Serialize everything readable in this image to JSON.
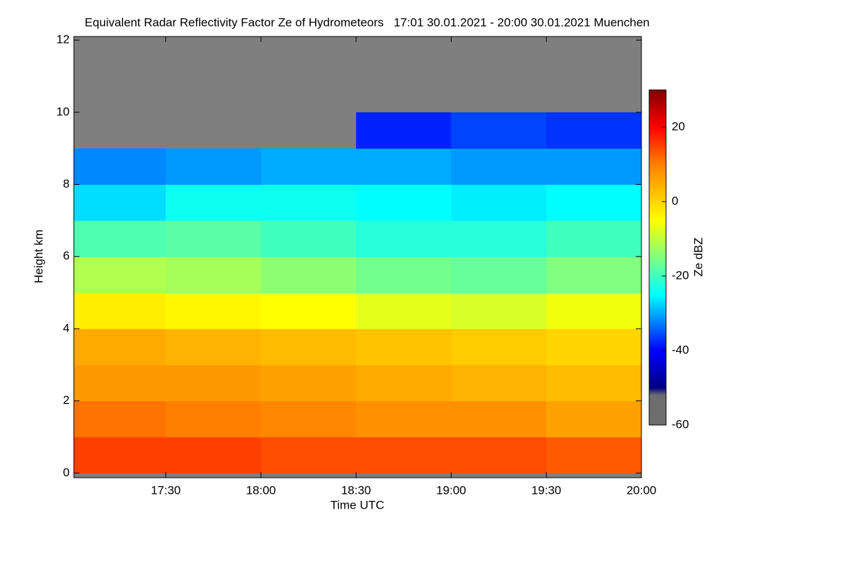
{
  "chart_data": {
    "type": "heatmap",
    "title": "Equivalent Radar Reflectivity Factor Ze of Hydrometeors   17:01 30.01.2021 - 20:00 30.01.2021 Muenchen",
    "x_label": "Time UTC",
    "y_label": "Height km",
    "colorbar_label": "Ze dBZ",
    "x_bins": [
      17.0167,
      17.5,
      18,
      18.5,
      19,
      19.5,
      20
    ],
    "y_bins": [
      0,
      1,
      2,
      3,
      4,
      5,
      6,
      7,
      8,
      9,
      10,
      11,
      12
    ],
    "z": [
      [
        15,
        15,
        14,
        14,
        14,
        13
      ],
      [
        11,
        10,
        9,
        8,
        8,
        6
      ],
      [
        7,
        7,
        6,
        5,
        4,
        3
      ],
      [
        5,
        4,
        3,
        2,
        1,
        0
      ],
      [
        -3,
        -4,
        -5,
        -7,
        -8,
        -6
      ],
      [
        -11,
        -12,
        -14,
        -16,
        -17,
        -15
      ],
      [
        -19,
        -18,
        -20,
        -22,
        -22,
        -20
      ],
      [
        -27,
        -24,
        -24,
        -25,
        -26,
        -25
      ],
      [
        -32,
        -31,
        -30,
        -30,
        -31,
        -31
      ],
      [
        null,
        null,
        null,
        -38,
        -36,
        -37
      ],
      [
        null,
        null,
        null,
        null,
        null,
        null
      ],
      [
        null,
        null,
        null,
        null,
        null,
        null
      ]
    ],
    "xlim": [
      17.0167,
      20.0
    ],
    "ylim": [
      -0.13,
      12.1
    ],
    "xticks": [
      {
        "value": 17.5,
        "label": "17:30"
      },
      {
        "value": 18,
        "label": "18:00"
      },
      {
        "value": 18.5,
        "label": "18:30"
      },
      {
        "value": 19,
        "label": "19:00"
      },
      {
        "value": 19.5,
        "label": "19:30"
      },
      {
        "value": 20,
        "label": "20:00"
      }
    ],
    "yticks": [
      0,
      2,
      4,
      6,
      8,
      10,
      12
    ],
    "clim": [
      -60,
      30
    ],
    "cticks": [
      -60,
      -40,
      -20,
      0,
      20
    ],
    "missing_color": "#7f7f7f",
    "colormap": [
      {
        "value": -60,
        "color": "#6e6e6e"
      },
      {
        "value": -52,
        "color": "#6e6e6e"
      },
      {
        "value": -50,
        "color": "#000080"
      },
      {
        "value": -40,
        "color": "#0000ff"
      },
      {
        "value": -25,
        "color": "#00ffff"
      },
      {
        "value": -5,
        "color": "#ffff00"
      },
      {
        "value": 10,
        "color": "#ff8000"
      },
      {
        "value": 20,
        "color": "#ff0000"
      },
      {
        "value": 30,
        "color": "#800000"
      }
    ]
  }
}
